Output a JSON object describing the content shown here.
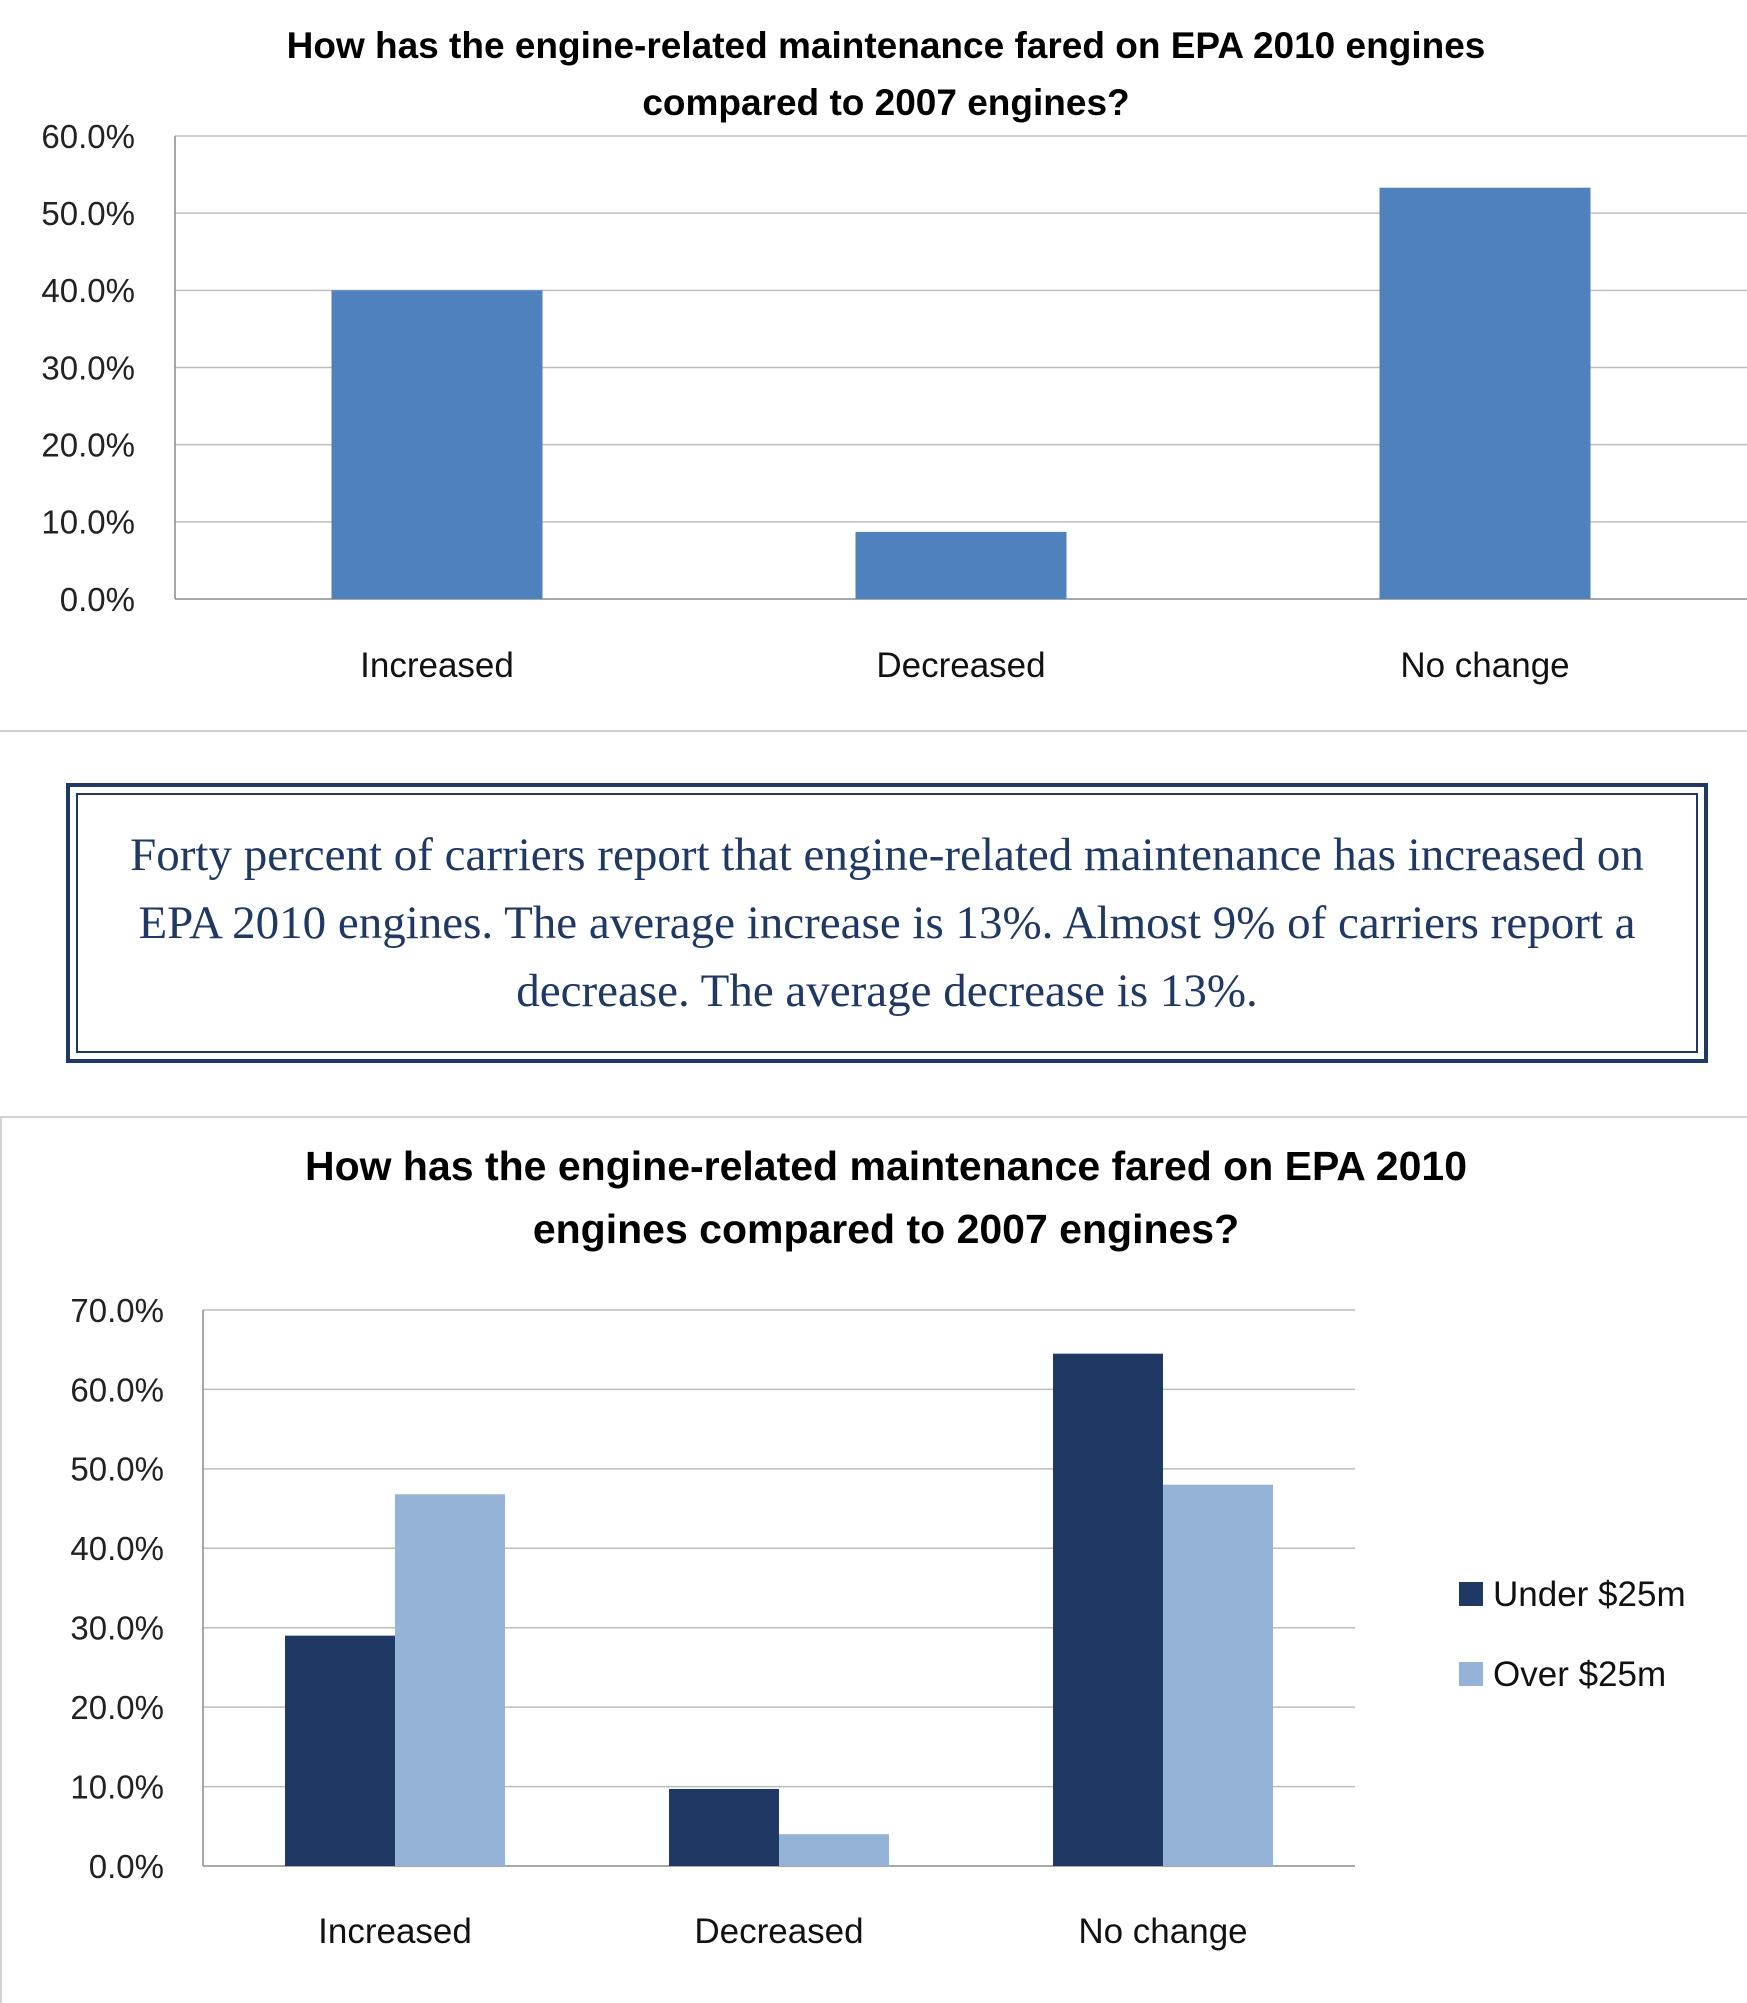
{
  "charts": [
    {
      "title_lines": [
        "How has the engine-related maintenance fared on EPA 2010 engines",
        "compared to 2007 engines?"
      ]
    },
    {
      "title_lines": [
        "How has the engine-related maintenance fared on EPA 2010",
        "engines compared to 2007 engines?"
      ]
    }
  ],
  "callout": {
    "text": "Forty percent of carriers report that engine-related maintenance has increased on EPA 2010 engines. The average increase is 13%. Almost 9% of carriers report a decrease. The average decrease is 13%."
  },
  "colors": {
    "bar_single": "#4F81BD",
    "under": "#1F3864",
    "over": "#95B3D7",
    "callout": "#1F3864"
  },
  "chart_data": [
    {
      "type": "bar",
      "title": "How has the engine-related maintenance fared on EPA 2010 engines compared to 2007 engines?",
      "categories": [
        "Increased",
        "Decreased",
        "No change"
      ],
      "values": [
        40.0,
        8.7,
        53.3
      ],
      "ylim": [
        0,
        60
      ],
      "yticks": [
        "0.0%",
        "10.0%",
        "20.0%",
        "30.0%",
        "40.0%",
        "50.0%",
        "60.0%"
      ],
      "xlabel": "",
      "ylabel": "",
      "grid": true
    },
    {
      "type": "bar",
      "title": "How has the engine-related maintenance fared on EPA 2010 engines compared to 2007 engines?",
      "categories": [
        "Increased",
        "Decreased",
        "No change"
      ],
      "series": [
        {
          "name": "Under $25m",
          "values": [
            29.0,
            9.7,
            64.5
          ]
        },
        {
          "name": "Over $25m",
          "values": [
            46.8,
            4.0,
            48.0
          ]
        }
      ],
      "ylim": [
        0,
        70
      ],
      "yticks": [
        "0.0%",
        "10.0%",
        "20.0%",
        "30.0%",
        "40.0%",
        "50.0%",
        "60.0%",
        "70.0%"
      ],
      "legend_position": "right",
      "xlabel": "",
      "ylabel": "",
      "grid": true
    }
  ]
}
